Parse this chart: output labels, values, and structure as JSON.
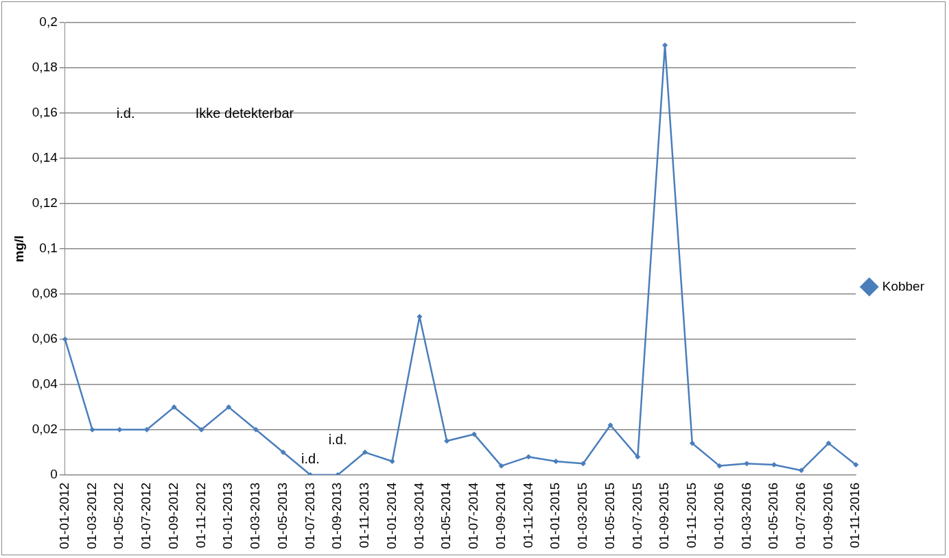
{
  "chart_data": {
    "type": "line",
    "ylabel": "mg/l",
    "categories": [
      "01-01-2012",
      "01-03-2012",
      "01-05-2012",
      "01-07-2012",
      "01-09-2012",
      "01-11-2012",
      "01-01-2013",
      "01-03-2013",
      "01-05-2013",
      "01-07-2013",
      "01-09-2013",
      "01-11-2013",
      "01-01-2014",
      "01-03-2014",
      "01-05-2014",
      "01-07-2014",
      "01-09-2014",
      "01-11-2014",
      "01-01-2015",
      "01-03-2015",
      "01-05-2015",
      "01-07-2015",
      "01-09-2015",
      "01-11-2015",
      "01-01-2016",
      "01-03-2016",
      "01-05-2016",
      "01-07-2016",
      "01-09-2016",
      "01-11-2016"
    ],
    "series": [
      {
        "name": "Kobber",
        "color": "#4a7ebb",
        "values": [
          0.06,
          0.02,
          0.02,
          0.02,
          0.03,
          0.02,
          0.03,
          0.02,
          0.01,
          0,
          0,
          0.01,
          0.006,
          0.07,
          0.015,
          0.018,
          0.004,
          0.008,
          0.006,
          0.005,
          0.022,
          0.008,
          0.19,
          0.014,
          0.004,
          0.005,
          0.0045,
          0.002,
          0.014,
          0.0045
        ]
      }
    ],
    "ylim": [
      0,
      0.2
    ],
    "yticks": [
      {
        "value": 0,
        "label": "0"
      },
      {
        "value": 0.02,
        "label": "0,02"
      },
      {
        "value": 0.04,
        "label": "0,04"
      },
      {
        "value": 0.06,
        "label": "0,06"
      },
      {
        "value": 0.08,
        "label": "0,08"
      },
      {
        "value": 0.1,
        "label": "0,1"
      },
      {
        "value": 0.12,
        "label": "0,12"
      },
      {
        "value": 0.14,
        "label": "0,14"
      },
      {
        "value": 0.16,
        "label": "0,16"
      },
      {
        "value": 0.18,
        "label": "0,18"
      },
      {
        "value": 0.2,
        "label": "0,2"
      }
    ],
    "grid": "y",
    "legend": "right",
    "marker": "diamond",
    "line_style": "solid",
    "annotations": [
      {
        "text": "i.d.",
        "x": "01-07-2013",
        "y": 0
      },
      {
        "text": "i.d.",
        "x": "01-09-2013",
        "y": 0
      },
      "i.d.",
      "Ikke detekterbar"
    ]
  }
}
